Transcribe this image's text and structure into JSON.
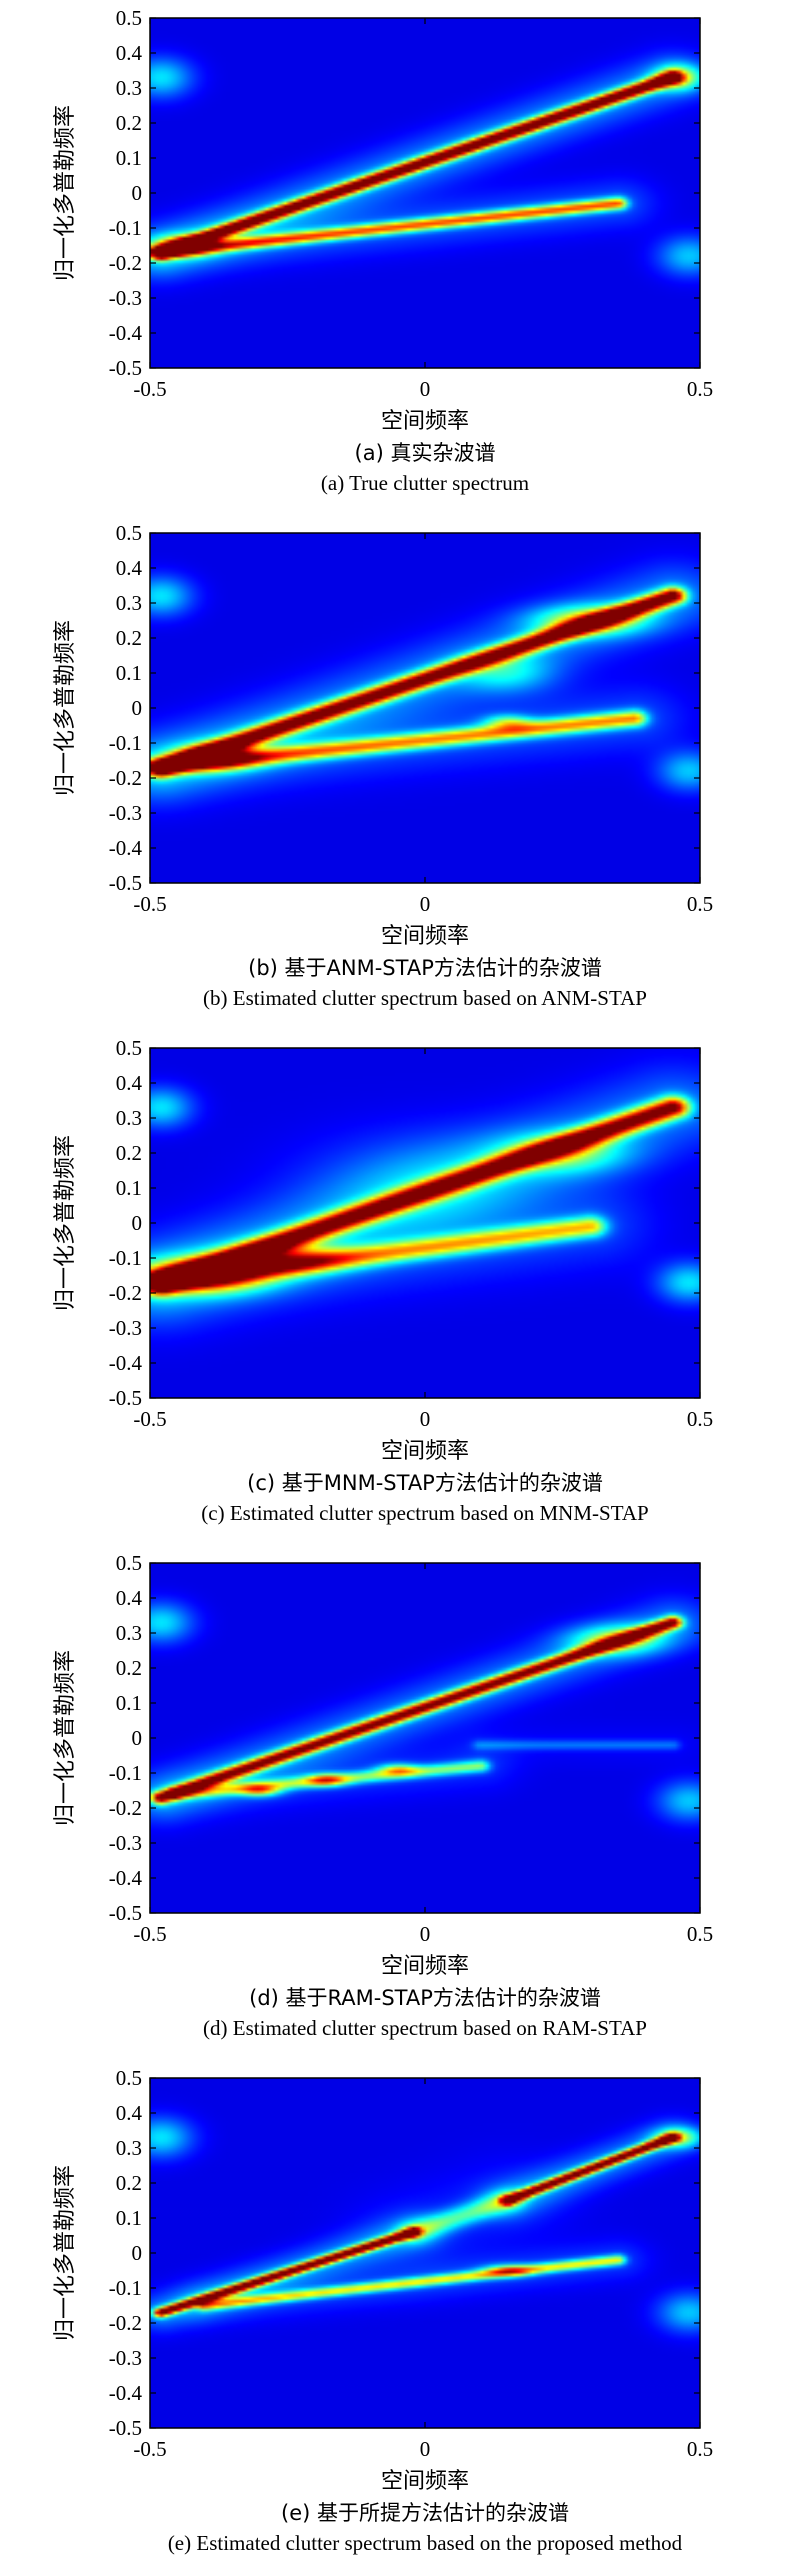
{
  "chart_data": [
    {
      "type": "heatmap",
      "xlabel": "空间频率",
      "ylabel": "归一化多普勒频率",
      "xlim": [
        -0.5,
        0.5
      ],
      "ylim": [
        -0.5,
        0.5
      ],
      "xticks": [
        "-0.5",
        "0",
        "0.5"
      ],
      "yticks": [
        "0.5",
        "0.4",
        "0.3",
        "0.2",
        "0.1",
        "0",
        "-0.1",
        "-0.2",
        "-0.3",
        "-0.4",
        "-0.5"
      ],
      "caption_cn": "(a) 真实杂波谱",
      "caption_en": "(a) True clutter spectrum",
      "ridges": [
        {
          "x0": -0.48,
          "y0": -0.17,
          "x1": 0.45,
          "y1": 0.33,
          "width": 0.012,
          "amp": 0.95
        },
        {
          "x0": -0.48,
          "y0": -0.17,
          "x1": 0.35,
          "y1": -0.03,
          "width": 0.012,
          "amp": 0.6
        }
      ],
      "blobs": [
        {
          "x": -0.44,
          "y": -0.15,
          "sx": 0.035,
          "sy": 0.02,
          "amp": 0.5
        },
        {
          "x": 0.46,
          "y": 0.33,
          "sx": 0.03,
          "sy": 0.025,
          "amp": 0.4
        },
        {
          "x": -0.48,
          "y": 0.33,
          "sx": 0.04,
          "sy": 0.04,
          "amp": 0.25
        },
        {
          "x": 0.48,
          "y": -0.18,
          "sx": 0.04,
          "sy": 0.04,
          "amp": 0.22
        }
      ]
    },
    {
      "type": "heatmap",
      "xlabel": "空间频率",
      "ylabel": "归一化多普勒频率",
      "xlim": [
        -0.5,
        0.5
      ],
      "ylim": [
        -0.5,
        0.5
      ],
      "xticks": [
        "-0.5",
        "0",
        "0.5"
      ],
      "yticks": [
        "0.5",
        "0.4",
        "0.3",
        "0.2",
        "0.1",
        "0",
        "-0.1",
        "-0.2",
        "-0.3",
        "-0.4",
        "-0.5"
      ],
      "caption_cn": "(b) 基于ANM-STAP方法估计的杂波谱",
      "caption_en": "(b) Estimated clutter spectrum based on ANM-STAP",
      "ridges": [
        {
          "x0": -0.48,
          "y0": -0.17,
          "x1": 0.45,
          "y1": 0.32,
          "width": 0.016,
          "amp": 0.9
        },
        {
          "x0": -0.48,
          "y0": -0.17,
          "x1": 0.38,
          "y1": -0.03,
          "width": 0.016,
          "amp": 0.55
        }
      ],
      "blobs": [
        {
          "x": -0.38,
          "y": -0.14,
          "sx": 0.05,
          "sy": 0.025,
          "amp": 0.5
        },
        {
          "x": 0.3,
          "y": 0.25,
          "sx": 0.07,
          "sy": 0.03,
          "amp": 0.4
        },
        {
          "x": 0.15,
          "y": 0.1,
          "sx": 0.06,
          "sy": 0.04,
          "amp": 0.2
        },
        {
          "x": 0.15,
          "y": -0.04,
          "sx": 0.03,
          "sy": 0.015,
          "amp": 0.3
        },
        {
          "x": -0.48,
          "y": 0.32,
          "sx": 0.04,
          "sy": 0.04,
          "amp": 0.25
        },
        {
          "x": 0.48,
          "y": -0.18,
          "sx": 0.04,
          "sy": 0.04,
          "amp": 0.22
        }
      ]
    },
    {
      "type": "heatmap",
      "xlabel": "空间频率",
      "ylabel": "归一化多普勒频率",
      "xlim": [
        -0.5,
        0.5
      ],
      "ylim": [
        -0.5,
        0.5
      ],
      "xticks": [
        "-0.5",
        "0",
        "0.5"
      ],
      "yticks": [
        "0.5",
        "0.4",
        "0.3",
        "0.2",
        "0.1",
        "0",
        "-0.1",
        "-0.2",
        "-0.3",
        "-0.4",
        "-0.5"
      ],
      "caption_cn": "(c) 基于MNM-STAP方法估计的杂波谱",
      "caption_en": "(c) Estimated clutter spectrum based on MNM-STAP",
      "ridges": [
        {
          "x0": -0.48,
          "y0": -0.17,
          "x1": 0.45,
          "y1": 0.33,
          "width": 0.02,
          "amp": 0.85
        },
        {
          "x0": -0.48,
          "y0": -0.17,
          "x1": 0.3,
          "y1": -0.01,
          "width": 0.02,
          "amp": 0.5
        }
      ],
      "blobs": [
        {
          "x": -0.4,
          "y": -0.15,
          "sx": 0.08,
          "sy": 0.035,
          "amp": 0.6
        },
        {
          "x": -0.25,
          "y": -0.1,
          "sx": 0.07,
          "sy": 0.03,
          "amp": 0.35
        },
        {
          "x": 0.25,
          "y": 0.2,
          "sx": 0.08,
          "sy": 0.04,
          "amp": 0.3
        },
        {
          "x": 0.0,
          "y": 0.12,
          "sx": 0.15,
          "sy": 0.1,
          "amp": 0.12
        },
        {
          "x": -0.48,
          "y": 0.33,
          "sx": 0.04,
          "sy": 0.04,
          "amp": 0.25
        },
        {
          "x": 0.48,
          "y": -0.17,
          "sx": 0.04,
          "sy": 0.04,
          "amp": 0.25
        }
      ]
    },
    {
      "type": "heatmap",
      "xlabel": "空间频率",
      "ylabel": "归一化多普勒频率",
      "xlim": [
        -0.5,
        0.5
      ],
      "ylim": [
        -0.5,
        0.5
      ],
      "xticks": [
        "-0.5",
        "0",
        "0.5"
      ],
      "yticks": [
        "0.5",
        "0.4",
        "0.3",
        "0.2",
        "0.1",
        "0",
        "-0.1",
        "-0.2",
        "-0.3",
        "-0.4",
        "-0.5"
      ],
      "caption_cn": "(d) 基于RAM-STAP方法估计的杂波谱",
      "caption_en": "(d) Estimated clutter spectrum based on RAM-STAP",
      "ridges": [
        {
          "x0": -0.48,
          "y0": -0.17,
          "x1": 0.45,
          "y1": 0.33,
          "width": 0.012,
          "amp": 0.85
        },
        {
          "x0": -0.45,
          "y0": -0.16,
          "x1": 0.1,
          "y1": -0.08,
          "width": 0.012,
          "amp": 0.35
        },
        {
          "x0": 0.1,
          "y0": -0.02,
          "x1": 0.45,
          "y1": -0.02,
          "width": 0.01,
          "amp": 0.12
        }
      ],
      "blobs": [
        {
          "x": -0.3,
          "y": -0.15,
          "sx": 0.025,
          "sy": 0.012,
          "amp": 0.4
        },
        {
          "x": -0.18,
          "y": -0.12,
          "sx": 0.025,
          "sy": 0.012,
          "amp": 0.4
        },
        {
          "x": -0.05,
          "y": -0.09,
          "sx": 0.025,
          "sy": 0.012,
          "amp": 0.35
        },
        {
          "x": 0.35,
          "y": 0.28,
          "sx": 0.06,
          "sy": 0.03,
          "amp": 0.35
        },
        {
          "x": -0.48,
          "y": 0.33,
          "sx": 0.04,
          "sy": 0.04,
          "amp": 0.25
        },
        {
          "x": 0.48,
          "y": -0.18,
          "sx": 0.04,
          "sy": 0.04,
          "amp": 0.22
        }
      ]
    },
    {
      "type": "heatmap",
      "xlabel": "空间频率",
      "ylabel": "归一化多普勒频率",
      "xlim": [
        -0.5,
        0.5
      ],
      "ylim": [
        -0.5,
        0.5
      ],
      "xticks": [
        "-0.5",
        "0",
        "0.5"
      ],
      "yticks": [
        "0.5",
        "0.4",
        "0.3",
        "0.2",
        "0.1",
        "0",
        "-0.1",
        "-0.2",
        "-0.3",
        "-0.4",
        "-0.5"
      ],
      "caption_cn": "(e) 基于所提方法估计的杂波谱",
      "caption_en": "(e) Estimated clutter spectrum based on the proposed method",
      "ridges": [
        {
          "x0": -0.48,
          "y0": -0.17,
          "x1": -0.02,
          "y1": 0.06,
          "width": 0.009,
          "amp": 0.9
        },
        {
          "x0": 0.15,
          "y0": 0.15,
          "x1": 0.45,
          "y1": 0.33,
          "width": 0.009,
          "amp": 0.9
        },
        {
          "x0": -0.4,
          "y0": -0.15,
          "x1": 0.35,
          "y1": -0.02,
          "width": 0.01,
          "amp": 0.45
        },
        {
          "x0": -0.02,
          "y0": 0.06,
          "x1": 0.15,
          "y1": 0.15,
          "width": 0.02,
          "amp": 0.3
        }
      ],
      "blobs": [
        {
          "x": 0.15,
          "y": -0.05,
          "sx": 0.03,
          "sy": 0.012,
          "amp": 0.35
        },
        {
          "x": 0.46,
          "y": 0.33,
          "sx": 0.03,
          "sy": 0.02,
          "amp": 0.35
        },
        {
          "x": -0.48,
          "y": 0.33,
          "sx": 0.04,
          "sy": 0.04,
          "amp": 0.25
        },
        {
          "x": 0.48,
          "y": -0.17,
          "sx": 0.04,
          "sy": 0.04,
          "amp": 0.22
        }
      ]
    }
  ]
}
